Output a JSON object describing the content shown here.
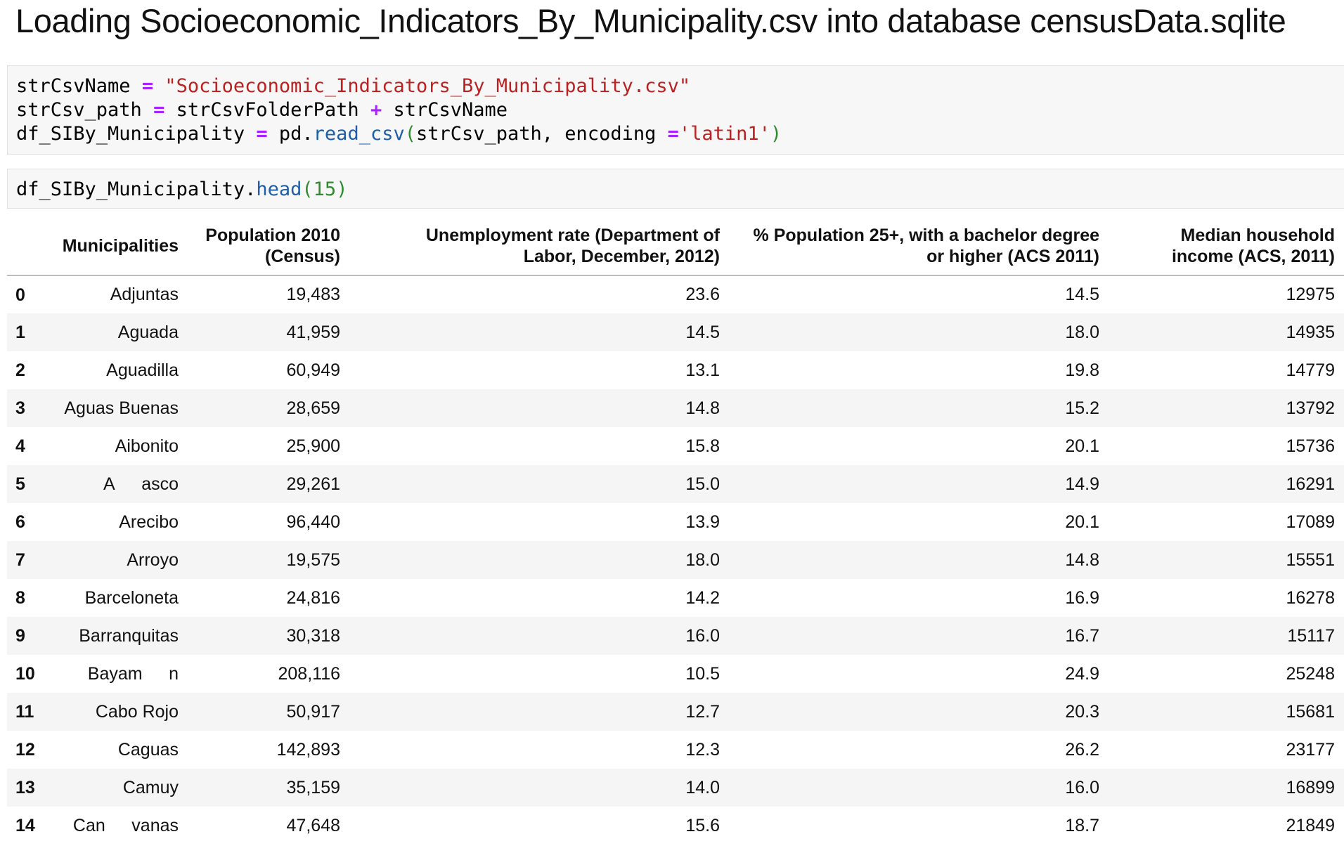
{
  "heading": "Loading Socioeconomic_Indicators_By_Municipality.csv into database censusData.sqlite",
  "cell1": {
    "line1": {
      "var": "strCsvName",
      "op": " = ",
      "str": "\"Socioeconomic_Indicators_By_Municipality.csv\""
    },
    "line2": {
      "var": "strCsv_path",
      "op1": " = ",
      "var2": "strCsvFolderPath",
      "op2": " + ",
      "var3": "strCsvName"
    },
    "line3": {
      "var": "df_SIBy_Municipality",
      "op": " = ",
      "obj": "pd",
      "dot": ".",
      "fn": "read_csv",
      "open": "(",
      "args": "strCsv_path, encoding ",
      "eq": "=",
      "str": "'latin1'",
      "close": ")"
    }
  },
  "cell2": {
    "obj": "df_SIBy_Municipality",
    "dot": ".",
    "fn": "head",
    "open": "(",
    "num": "15",
    "close": ")"
  },
  "table": {
    "headers": {
      "index": "",
      "municipalities": "Municipalities",
      "population_l1": "Population 2010",
      "population_l2": "(Census)",
      "unemployment_l1": "Unemployment rate (Department of",
      "unemployment_l2": "Labor, December, 2012)",
      "bachelor_l1": "% Population 25+, with a bachelor degree",
      "bachelor_l2": "or higher (ACS 2011)",
      "income_l1": "Median household",
      "income_l2": "income (ACS, 2011)"
    },
    "rows": [
      {
        "idx": "0",
        "mun": "Adjuntas",
        "pop": "19,483",
        "une": "23.6",
        "bac": "14.5",
        "inc": "12975"
      },
      {
        "idx": "1",
        "mun": "Aguada",
        "pop": "41,959",
        "une": "14.5",
        "bac": "18.0",
        "inc": "14935"
      },
      {
        "idx": "2",
        "mun": "Aguadilla",
        "pop": "60,949",
        "une": "13.1",
        "bac": "19.8",
        "inc": "14779"
      },
      {
        "idx": "3",
        "mun": "Aguas Buenas",
        "pop": "28,659",
        "une": "14.8",
        "bac": "15.2",
        "inc": "13792"
      },
      {
        "idx": "4",
        "mun": "Aibonito",
        "pop": "25,900",
        "une": "15.8",
        "bac": "20.1",
        "inc": "15736"
      },
      {
        "idx": "5",
        "mun": "A  asco",
        "pop": "29,261",
        "une": "15.0",
        "bac": "14.9",
        "inc": "16291"
      },
      {
        "idx": "6",
        "mun": "Arecibo",
        "pop": "96,440",
        "une": "13.9",
        "bac": "20.1",
        "inc": "17089"
      },
      {
        "idx": "7",
        "mun": "Arroyo",
        "pop": "19,575",
        "une": "18.0",
        "bac": "14.8",
        "inc": "15551"
      },
      {
        "idx": "8",
        "mun": "Barceloneta",
        "pop": "24,816",
        "une": "14.2",
        "bac": "16.9",
        "inc": "16278"
      },
      {
        "idx": "9",
        "mun": "Barranquitas",
        "pop": "30,318",
        "une": "16.0",
        "bac": "16.7",
        "inc": "15117"
      },
      {
        "idx": "10",
        "mun": "Bayam  n",
        "pop": "208,116",
        "une": "10.5",
        "bac": "24.9",
        "inc": "25248"
      },
      {
        "idx": "11",
        "mun": "Cabo Rojo",
        "pop": "50,917",
        "une": "12.7",
        "bac": "20.3",
        "inc": "15681"
      },
      {
        "idx": "12",
        "mun": "Caguas",
        "pop": "142,893",
        "une": "12.3",
        "bac": "26.2",
        "inc": "23177"
      },
      {
        "idx": "13",
        "mun": "Camuy",
        "pop": "35,159",
        "une": "14.0",
        "bac": "16.0",
        "inc": "16899"
      },
      {
        "idx": "14",
        "mun": "Can  vanas",
        "pop": "47,648",
        "une": "15.6",
        "bac": "18.7",
        "inc": "21849"
      }
    ]
  }
}
